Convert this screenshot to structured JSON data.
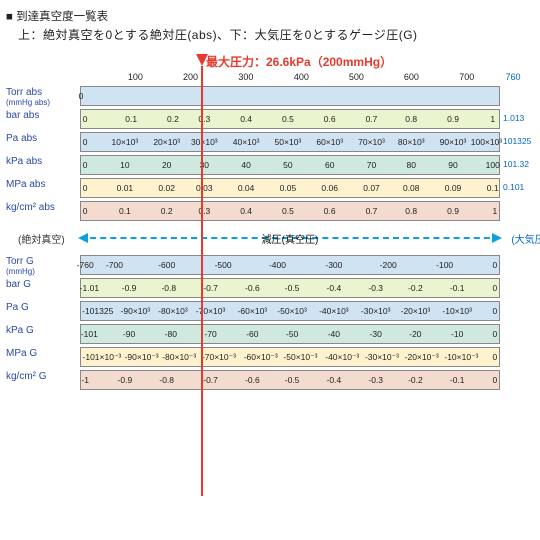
{
  "title": "■ 到達真空度一覧表",
  "subtitle": "上：絶対真空を0とする絶対圧(abs)、下：大気圧を0とするゲージ圧(G)",
  "max_note": "最大圧力：26.6kPa（200mmHg）",
  "marker_ratio": 0.263,
  "colors": {
    "row0": "#cfe3f3",
    "row1": "#eaf4cf",
    "row2": "#cfe9e1",
    "row3": "#fff3cf",
    "row4": "#f3dccf",
    "label": "#2a4aa8",
    "right_val": "#0066cc",
    "marker": "#e63a2e",
    "arrow": "#0aa0e0"
  },
  "top_scale": {
    "ticks": [
      {
        "label": "100",
        "pos": 0.132
      },
      {
        "label": "200",
        "pos": 0.263
      },
      {
        "label": "300",
        "pos": 0.395
      },
      {
        "label": "400",
        "pos": 0.527
      },
      {
        "label": "500",
        "pos": 0.658
      },
      {
        "label": "600",
        "pos": 0.789
      },
      {
        "label": "700",
        "pos": 0.921
      }
    ],
    "right": "760"
  },
  "abs_rows": [
    {
      "label": "Torr abs",
      "sub": "(mmHg abs)",
      "color": "row0",
      "right": "",
      "ticks": [
        {
          "t": "0",
          "p": 0
        }
      ]
    },
    {
      "label": "bar abs",
      "sub": "",
      "color": "row1",
      "right": "1.013",
      "ticks": [
        {
          "t": "0",
          "p": 0.01
        },
        {
          "t": "0.1",
          "p": 0.12
        },
        {
          "t": "0.2",
          "p": 0.22
        },
        {
          "t": "0.3",
          "p": 0.295
        },
        {
          "t": "0.4",
          "p": 0.395
        },
        {
          "t": "0.5",
          "p": 0.495
        },
        {
          "t": "0.6",
          "p": 0.595
        },
        {
          "t": "0.7",
          "p": 0.695
        },
        {
          "t": "0.8",
          "p": 0.79
        },
        {
          "t": "0.9",
          "p": 0.89
        },
        {
          "t": "1",
          "p": 0.985
        }
      ]
    },
    {
      "label": "Pa abs",
      "sub": "",
      "color": "row0",
      "right": "101325",
      "ticks": [
        {
          "t": "0",
          "p": 0.01
        },
        {
          "t": "10×10³",
          "p": 0.105
        },
        {
          "t": "20×10³",
          "p": 0.205
        },
        {
          "t": "30×10³",
          "p": 0.295
        },
        {
          "t": "40×10³",
          "p": 0.395
        },
        {
          "t": "50×10³",
          "p": 0.495
        },
        {
          "t": "60×10³",
          "p": 0.595
        },
        {
          "t": "70×10³",
          "p": 0.695
        },
        {
          "t": "80×10³",
          "p": 0.79
        },
        {
          "t": "90×10³",
          "p": 0.89
        },
        {
          "t": "100×10³",
          "p": 0.97
        }
      ]
    },
    {
      "label": "kPa abs",
      "sub": "",
      "color": "row2",
      "right": "101.32",
      "ticks": [
        {
          "t": "0",
          "p": 0.01
        },
        {
          "t": "10",
          "p": 0.105
        },
        {
          "t": "20",
          "p": 0.205
        },
        {
          "t": "30",
          "p": 0.295
        },
        {
          "t": "40",
          "p": 0.395
        },
        {
          "t": "50",
          "p": 0.495
        },
        {
          "t": "60",
          "p": 0.595
        },
        {
          "t": "70",
          "p": 0.695
        },
        {
          "t": "80",
          "p": 0.79
        },
        {
          "t": "90",
          "p": 0.89
        },
        {
          "t": "100",
          "p": 0.985
        }
      ]
    },
    {
      "label": "MPa abs",
      "sub": "",
      "color": "row3",
      "right": "0.101",
      "ticks": [
        {
          "t": "0",
          "p": 0.01
        },
        {
          "t": "0.01",
          "p": 0.105
        },
        {
          "t": "0.02",
          "p": 0.205
        },
        {
          "t": "0.03",
          "p": 0.295
        },
        {
          "t": "0.04",
          "p": 0.395
        },
        {
          "t": "0.05",
          "p": 0.495
        },
        {
          "t": "0.06",
          "p": 0.595
        },
        {
          "t": "0.07",
          "p": 0.695
        },
        {
          "t": "0.08",
          "p": 0.79
        },
        {
          "t": "0.09",
          "p": 0.89
        },
        {
          "t": "0.1",
          "p": 0.985
        }
      ]
    },
    {
      "label": "kg/cm² abs",
      "sub": "",
      "color": "row4",
      "right": "",
      "ticks": [
        {
          "t": "0",
          "p": 0.01
        },
        {
          "t": "0.1",
          "p": 0.105
        },
        {
          "t": "0.2",
          "p": 0.205
        },
        {
          "t": "0.3",
          "p": 0.295
        },
        {
          "t": "0.4",
          "p": 0.395
        },
        {
          "t": "0.5",
          "p": 0.495
        },
        {
          "t": "0.6",
          "p": 0.595
        },
        {
          "t": "0.7",
          "p": 0.695
        },
        {
          "t": "0.8",
          "p": 0.79
        },
        {
          "t": "0.9",
          "p": 0.89
        },
        {
          "t": "1",
          "p": 0.99
        }
      ]
    }
  ],
  "spectrum": {
    "left": "(絶対真空)",
    "center": "減圧(真空圧)",
    "right": "(大気圧)"
  },
  "gauge_rows": [
    {
      "label": "Torr G",
      "sub": "(mmHg)",
      "color": "row0",
      "right": "",
      "ticks": [
        {
          "t": "-760",
          "p": 0.01
        },
        {
          "t": "-700",
          "p": 0.08
        },
        {
          "t": "-600",
          "p": 0.205
        },
        {
          "t": "-500",
          "p": 0.34
        },
        {
          "t": "-400",
          "p": 0.47
        },
        {
          "t": "-300",
          "p": 0.605
        },
        {
          "t": "-200",
          "p": 0.735
        },
        {
          "t": "-100",
          "p": 0.87
        },
        {
          "t": "0",
          "p": 0.99
        }
      ]
    },
    {
      "label": "bar G",
      "sub": "",
      "color": "row1",
      "right": "",
      "ticks": [
        {
          "t": "-1.01",
          "p": 0.02
        },
        {
          "t": "-0.9",
          "p": 0.115
        },
        {
          "t": "-0.8",
          "p": 0.21
        },
        {
          "t": "-0.7",
          "p": 0.31
        },
        {
          "t": "-0.6",
          "p": 0.41
        },
        {
          "t": "-0.5",
          "p": 0.505
        },
        {
          "t": "-0.4",
          "p": 0.605
        },
        {
          "t": "-0.3",
          "p": 0.705
        },
        {
          "t": "-0.2",
          "p": 0.8
        },
        {
          "t": "-0.1",
          "p": 0.9
        },
        {
          "t": "0",
          "p": 0.99
        }
      ]
    },
    {
      "label": "Pa G",
      "sub": "",
      "color": "row0",
      "right": "",
      "ticks": [
        {
          "t": "-101325",
          "p": 0.04
        },
        {
          "t": "-90×10³",
          "p": 0.13
        },
        {
          "t": "-80×10³",
          "p": 0.22
        },
        {
          "t": "-70×10³",
          "p": 0.31
        },
        {
          "t": "-60×10³",
          "p": 0.41
        },
        {
          "t": "-50×10³",
          "p": 0.505
        },
        {
          "t": "-40×10³",
          "p": 0.605
        },
        {
          "t": "-30×10³",
          "p": 0.705
        },
        {
          "t": "-20×10³",
          "p": 0.8
        },
        {
          "t": "-10×10³",
          "p": 0.9
        },
        {
          "t": "0",
          "p": 0.99
        }
      ]
    },
    {
      "label": "kPa G",
      "sub": "",
      "color": "row2",
      "right": "",
      "ticks": [
        {
          "t": "-101",
          "p": 0.02
        },
        {
          "t": "-90",
          "p": 0.115
        },
        {
          "t": "-80",
          "p": 0.215
        },
        {
          "t": "-70",
          "p": 0.31
        },
        {
          "t": "-60",
          "p": 0.41
        },
        {
          "t": "-50",
          "p": 0.505
        },
        {
          "t": "-40",
          "p": 0.605
        },
        {
          "t": "-30",
          "p": 0.705
        },
        {
          "t": "-20",
          "p": 0.8
        },
        {
          "t": "-10",
          "p": 0.9
        },
        {
          "t": "0",
          "p": 0.99
        }
      ]
    },
    {
      "label": "MPa G",
      "sub": "",
      "color": "row3",
      "right": "",
      "ticks": [
        {
          "t": "-101×10⁻³",
          "p": 0.05
        },
        {
          "t": "-90×10⁻³",
          "p": 0.145
        },
        {
          "t": "-80×10⁻³",
          "p": 0.235
        },
        {
          "t": "-70×10⁻³",
          "p": 0.33
        },
        {
          "t": "-60×10⁻³",
          "p": 0.43
        },
        {
          "t": "-50×10⁻³",
          "p": 0.525
        },
        {
          "t": "-40×10⁻³",
          "p": 0.625
        },
        {
          "t": "-30×10⁻³",
          "p": 0.72
        },
        {
          "t": "-20×10⁻³",
          "p": 0.815
        },
        {
          "t": "-10×10⁻³",
          "p": 0.91
        },
        {
          "t": "0",
          "p": 0.99
        }
      ]
    },
    {
      "label": "kg/cm² G",
      "sub": "",
      "color": "row4",
      "right": "",
      "ticks": [
        {
          "t": "-1",
          "p": 0.01
        },
        {
          "t": "-0.9",
          "p": 0.105
        },
        {
          "t": "-0.8",
          "p": 0.205
        },
        {
          "t": "-0.7",
          "p": 0.31
        },
        {
          "t": "-0.6",
          "p": 0.41
        },
        {
          "t": "-0.5",
          "p": 0.505
        },
        {
          "t": "-0.4",
          "p": 0.605
        },
        {
          "t": "-0.3",
          "p": 0.705
        },
        {
          "t": "-0.2",
          "p": 0.8
        },
        {
          "t": "-0.1",
          "p": 0.9
        },
        {
          "t": "0",
          "p": 0.99
        }
      ]
    }
  ]
}
